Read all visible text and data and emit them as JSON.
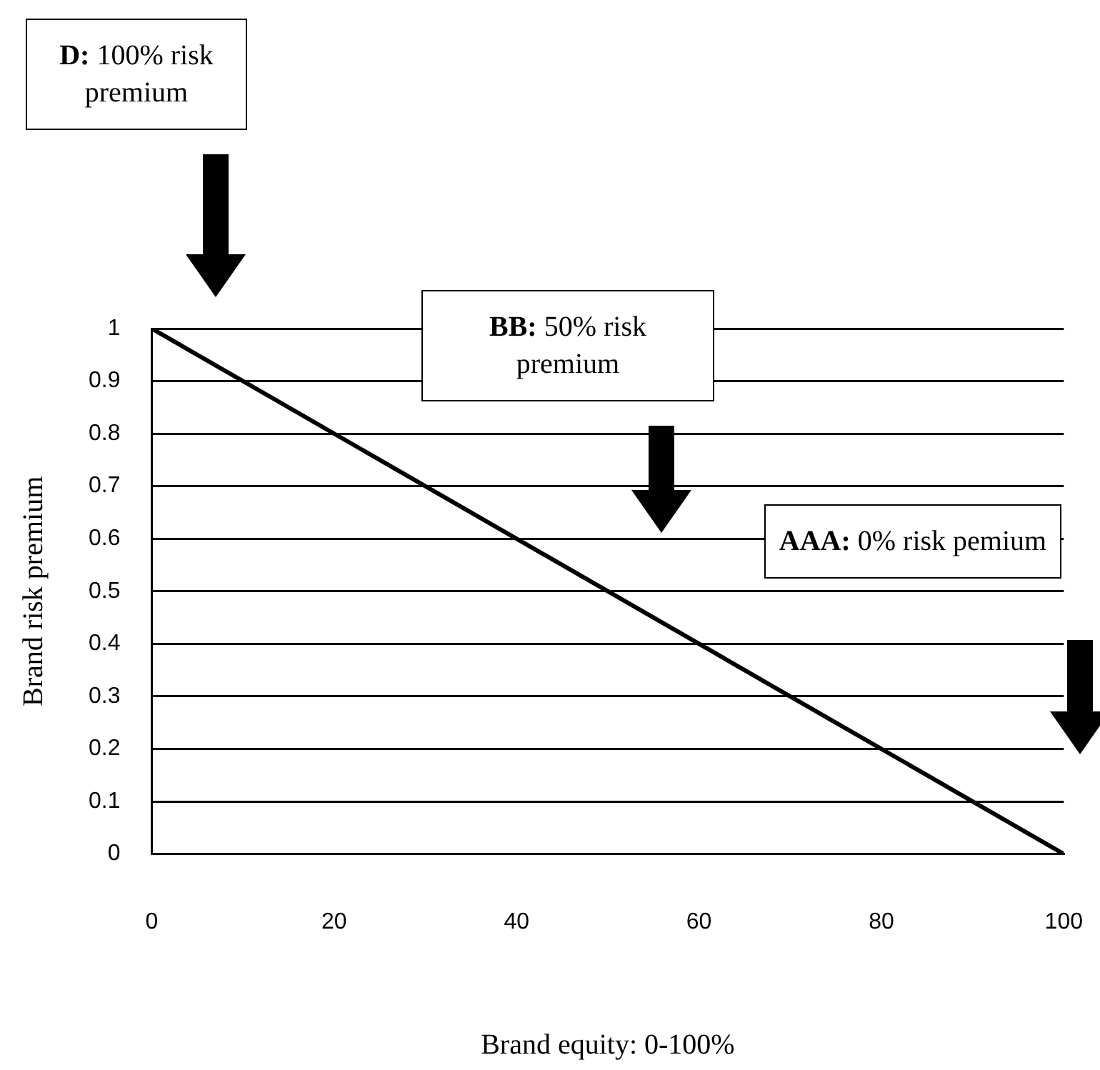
{
  "chart_data": {
    "type": "line",
    "xlabel": "Brand equity: 0-100%",
    "ylabel": "Brand risk premium",
    "x": [
      0,
      100
    ],
    "series": [
      {
        "color": "#000000",
        "values": [
          1,
          0
        ]
      }
    ],
    "xlim": [
      0,
      100
    ],
    "xticks": [
      0,
      20,
      40,
      60,
      80,
      100
    ],
    "ylim": [
      0,
      1
    ],
    "yticks": [
      0,
      0.1,
      0.2,
      0.3,
      0.4,
      0.5,
      0.6,
      0.7,
      0.8,
      0.9,
      1
    ],
    "grid": "y",
    "legend": false,
    "marker": "none",
    "line_style": "solid",
    "annotations": [
      "D: 100% risk premium",
      "BB: 50% risk premium",
      "AAA: 0% risk pemium"
    ]
  }
}
